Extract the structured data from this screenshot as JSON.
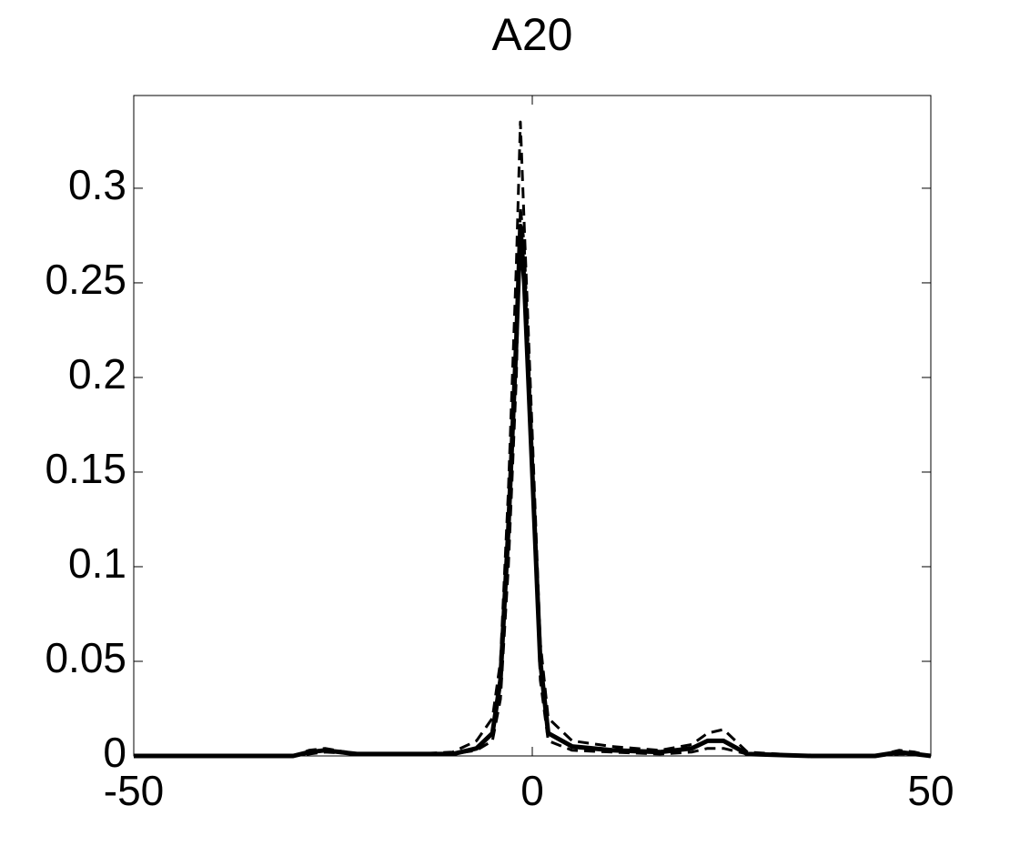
{
  "chart_data": {
    "type": "line",
    "title": "A20",
    "x": [
      -50,
      -30,
      -28,
      -26,
      -22,
      -15,
      -10,
      -7,
      -5,
      -4,
      -3,
      -2,
      -1.5,
      -1,
      0,
      1,
      2,
      5,
      10,
      16,
      20,
      22,
      24,
      27,
      35,
      43,
      46,
      48,
      50
    ],
    "series": [
      {
        "color": "#000000",
        "style": "solid",
        "values": [
          0,
          0,
          0.002,
          0.003,
          0.001,
          0.001,
          0.001,
          0.004,
          0.012,
          0.04,
          0.12,
          0.22,
          0.28,
          0.25,
          0.15,
          0.05,
          0.012,
          0.005,
          0.003,
          0.002,
          0.004,
          0.008,
          0.008,
          0.001,
          0,
          0,
          0.002,
          0.001,
          0
        ]
      },
      {
        "color": "#000000",
        "style": "dashed",
        "values": [
          0,
          0,
          0.003,
          0.004,
          0.001,
          0.001,
          0.002,
          0.008,
          0.02,
          0.05,
          0.14,
          0.26,
          0.335,
          0.28,
          0.17,
          0.06,
          0.02,
          0.008,
          0.005,
          0.003,
          0.006,
          0.012,
          0.014,
          0.002,
          0,
          0,
          0.003,
          0.002,
          0
        ]
      },
      {
        "color": "#000000",
        "style": "dashed",
        "values": [
          0,
          0,
          0.001,
          0.002,
          0.001,
          0.001,
          0.001,
          0.003,
          0.008,
          0.03,
          0.1,
          0.2,
          0.29,
          0.27,
          0.16,
          0.04,
          0.008,
          0.003,
          0.002,
          0.001,
          0.002,
          0.004,
          0.004,
          0.001,
          0,
          0,
          0.001,
          0.001,
          0
        ]
      }
    ],
    "xlim": [
      -50,
      50
    ],
    "xticks": [
      -50,
      0,
      50
    ],
    "ylim": [
      0,
      0.349
    ],
    "yticks": [
      0,
      0.05,
      0.1,
      0.15,
      0.2,
      0.25,
      0.3
    ],
    "grid": false,
    "box": true
  }
}
